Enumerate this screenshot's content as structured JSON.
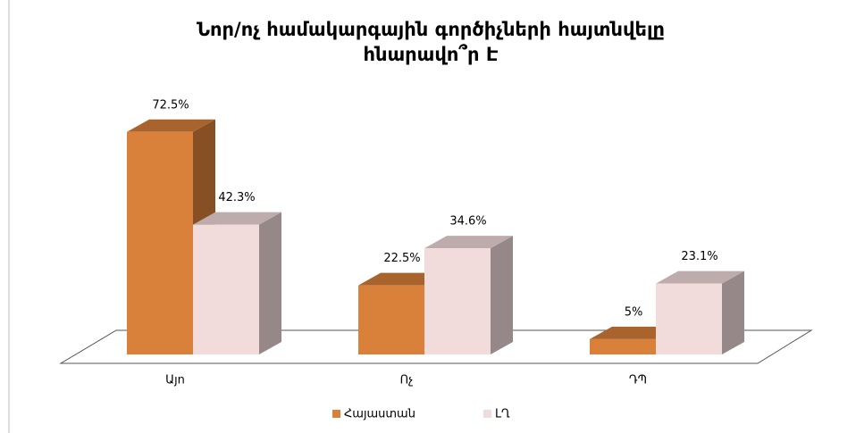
{
  "chart_data": {
    "type": "bar3d",
    "title": [
      "Նոր/ոչ համակարգային գործիչների հայտնվելը",
      "հնարավո՞ր Է"
    ],
    "categories": [
      "Այո",
      "Ոչ",
      "ԴՊ"
    ],
    "series": [
      {
        "name": "Հայաստան",
        "color": "#d9803a",
        "values": [
          72.5,
          22.5,
          5
        ],
        "value_labels": [
          "72.5%",
          "22.5%",
          "5%"
        ]
      },
      {
        "name": "ԼՂ",
        "color": "#f2dcdb",
        "values": [
          42.3,
          34.6,
          23.1
        ],
        "value_labels": [
          "42.3%",
          "34.6%",
          "23.1%"
        ]
      }
    ],
    "ylim": [
      0,
      80
    ],
    "legend": "bottom"
  }
}
